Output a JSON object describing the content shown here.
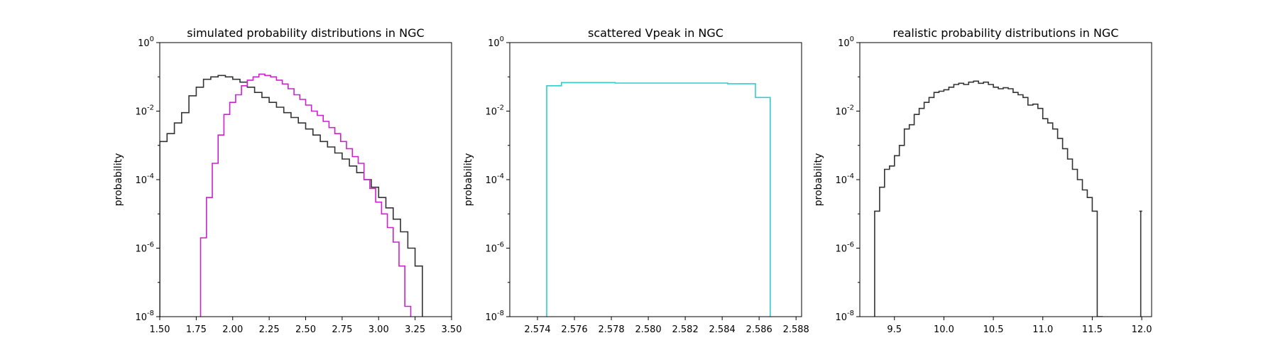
{
  "chart_data": [
    {
      "type": "line",
      "style": "step-histogram",
      "title": "simulated probability distributions in NGC",
      "xlabel": "",
      "ylabel": "probability",
      "xlim": [
        1.5,
        3.5
      ],
      "ylim": [
        1e-08,
        1
      ],
      "yscale": "log",
      "xticks": [
        "1.50",
        "1.75",
        "2.00",
        "2.25",
        "2.50",
        "2.75",
        "3.00",
        "3.25",
        "3.50"
      ],
      "grid": false,
      "series": [
        {
          "color": "#333333",
          "x": [
            1.5,
            1.55,
            1.6,
            1.65,
            1.7,
            1.75,
            1.8,
            1.85,
            1.9,
            1.95,
            2.0,
            2.05,
            2.1,
            2.15,
            2.2,
            2.25,
            2.3,
            2.35,
            2.4,
            2.45,
            2.5,
            2.55,
            2.6,
            2.65,
            2.7,
            2.75,
            2.8,
            2.85,
            2.9,
            2.95,
            3.0,
            3.05,
            3.1,
            3.15,
            3.2,
            3.25,
            3.3
          ],
          "y": [
            0.0013,
            0.0022,
            0.0045,
            0.009,
            0.028,
            0.05,
            0.085,
            0.1,
            0.11,
            0.1,
            0.085,
            0.07,
            0.05,
            0.035,
            0.025,
            0.018,
            0.013,
            0.009,
            0.0065,
            0.0045,
            0.003,
            0.002,
            0.0013,
            0.0009,
            0.0006,
            0.0004,
            0.00025,
            0.00016,
            0.0001,
            6e-05,
            3e-05,
            1.5e-05,
            7e-06,
            3e-06,
            1e-06,
            3e-07,
            2e-08
          ],
          "x_end": 3.3
        },
        {
          "color": "#cc22cc",
          "x": [
            1.78,
            1.82,
            1.86,
            1.9,
            1.94,
            1.98,
            2.02,
            2.06,
            2.1,
            2.14,
            2.18,
            2.22,
            2.26,
            2.3,
            2.34,
            2.38,
            2.42,
            2.46,
            2.5,
            2.54,
            2.58,
            2.62,
            2.66,
            2.7,
            2.74,
            2.78,
            2.82,
            2.86,
            2.9,
            2.94,
            2.98,
            3.02,
            3.06,
            3.1,
            3.14,
            3.18,
            3.22
          ],
          "y": [
            2e-06,
            3e-05,
            0.0003,
            0.002,
            0.008,
            0.018,
            0.03,
            0.055,
            0.08,
            0.1,
            0.12,
            0.11,
            0.1,
            0.08,
            0.062,
            0.045,
            0.03,
            0.022,
            0.015,
            0.01,
            0.0075,
            0.005,
            0.0033,
            0.0022,
            0.0013,
            0.0008,
            0.00047,
            0.0003,
            0.0001,
            5.5e-05,
            2.2e-05,
            1e-05,
            4e-06,
            1.5e-06,
            3e-07,
            2e-08,
            2e-08
          ],
          "x_end": 3.22
        }
      ]
    },
    {
      "type": "line",
      "style": "step-histogram",
      "title": "scattered Vpeak in NGC",
      "xlabel": "",
      "ylabel": "probability",
      "xlim": [
        2.5725,
        2.5883
      ],
      "ylim": [
        1e-08,
        1
      ],
      "yscale": "log",
      "xticks": [
        "2.574",
        "2.576",
        "2.578",
        "2.580",
        "2.582",
        "2.584",
        "2.586",
        "2.588"
      ],
      "grid": false,
      "series": [
        {
          "color": "#33cccc",
          "x": [
            2.5745,
            2.5753,
            2.5782,
            2.5843,
            2.5858
          ],
          "y": [
            0.055,
            0.068,
            0.066,
            0.063,
            0.025
          ],
          "x_end": 2.5866
        }
      ]
    },
    {
      "type": "line",
      "style": "step-histogram",
      "title": "realistic probability distributions in NGC",
      "xlabel": "",
      "ylabel": "probability",
      "xlim": [
        9.15,
        12.1
      ],
      "ylim": [
        1e-08,
        1
      ],
      "yscale": "log",
      "xticks": [
        "9.5",
        "10.0",
        "10.5",
        "11.0",
        "11.5",
        "12.0"
      ],
      "grid": false,
      "series": [
        {
          "color": "#333333",
          "x": [
            9.3,
            9.35,
            9.4,
            9.45,
            9.5,
            9.55,
            9.6,
            9.65,
            9.7,
            9.75,
            9.8,
            9.85,
            9.9,
            9.95,
            10.0,
            10.05,
            10.1,
            10.15,
            10.2,
            10.25,
            10.3,
            10.35,
            10.4,
            10.45,
            10.5,
            10.55,
            10.6,
            10.65,
            10.7,
            10.75,
            10.8,
            10.85,
            10.9,
            10.95,
            11.0,
            11.05,
            11.1,
            11.15,
            11.2,
            11.25,
            11.3,
            11.35,
            11.4,
            11.45,
            11.5,
            11.55
          ],
          "y": [
            1.2e-05,
            6e-05,
            0.0002,
            0.00025,
            0.0005,
            0.001,
            0.003,
            0.004,
            0.008,
            0.012,
            0.018,
            0.025,
            0.035,
            0.038,
            0.042,
            0.05,
            0.06,
            0.065,
            0.06,
            0.07,
            0.075,
            0.065,
            0.07,
            0.06,
            0.05,
            0.045,
            0.048,
            0.045,
            0.035,
            0.03,
            0.025,
            0.015,
            0.016,
            0.012,
            0.006,
            0.0045,
            0.003,
            0.0016,
            0.0008,
            0.0004,
            0.0002,
            0.0001,
            5e-05,
            3e-05,
            1.2e-05,
            1e-08
          ],
          "x_end": 11.6,
          "extra_spike": {
            "x": 11.99,
            "y": 1.2e-05
          }
        }
      ]
    }
  ]
}
